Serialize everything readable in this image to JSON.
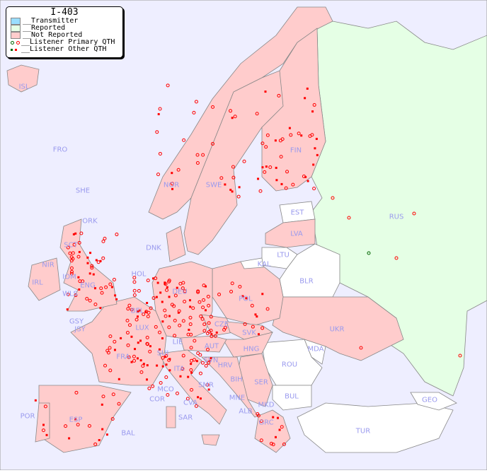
{
  "legend": {
    "title": "I-403",
    "items": [
      {
        "label": "__Transmitter",
        "color": "#99ddff"
      },
      {
        "label": "__Reported",
        "color": "#e5ffe5"
      },
      {
        "label": "__Not Reported",
        "color": "#ffcccc"
      },
      {
        "label": "__Listener Primary QTH",
        "colors": [
          "#006600",
          "#ff0000"
        ]
      },
      {
        "label": "__Listener Other QTH",
        "colors": [
          "#006600",
          "#ff0000"
        ]
      }
    ]
  },
  "colors": {
    "sea": "#eeeeff",
    "not_reported": "#ffcccc",
    "reported": "#e5ffe5",
    "no_data": "#ffffff",
    "label": "#9a9aee",
    "marker": "#ff0000"
  },
  "countries": [
    "ISL",
    "FRO",
    "NOR",
    "SWE",
    "FIN",
    "RUS",
    "EST",
    "LVA",
    "LTU",
    "KAL",
    "BLR",
    "UKR",
    "MDA",
    "ROU",
    "BUL",
    "TUR",
    "GEO",
    "SHE",
    "ORK",
    "DNK",
    "IRL",
    "IOM",
    "WLS",
    "GSY",
    "JSY",
    "HOL",
    "BEL",
    "LUX",
    "DEU",
    "POL",
    "CZE",
    "SVK",
    "HNG",
    "AUT",
    "SUI",
    "LIE",
    "FRA",
    "ITA",
    "SVN",
    "HRV",
    "BIH",
    "SER",
    "MNE",
    "ALB",
    "MKD",
    "GRC",
    "MCO",
    "COR",
    "SAR",
    "SMR",
    "CVA",
    "POR",
    "ESP",
    "BAL",
    "ENG",
    "SCT",
    "NIR"
  ]
}
